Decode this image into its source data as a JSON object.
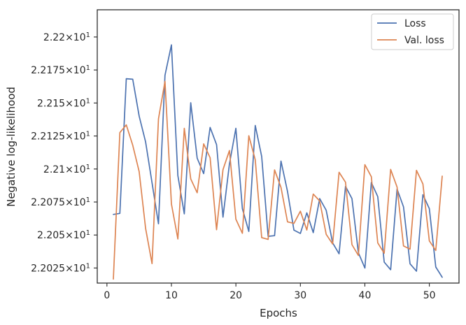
{
  "chart_data": {
    "type": "line",
    "xlabel": "Epochs",
    "ylabel": "Negative log-likelihood",
    "xlim": [
      -1.5,
      54.6
    ],
    "ylim": [
      22.0136,
      22.2206
    ],
    "x_ticks": [
      0,
      10,
      20,
      30,
      40,
      50
    ],
    "x_tick_labels": [
      "0",
      "10",
      "20",
      "30",
      "40",
      "50"
    ],
    "y_ticks": [
      22.025,
      22.05,
      22.075,
      22.1,
      22.125,
      22.15,
      22.175,
      22.2
    ],
    "y_tick_labels": [
      {
        "mantissa": "2.2025",
        "exponent": "1"
      },
      {
        "mantissa": "2.205",
        "exponent": "1"
      },
      {
        "mantissa": "2.2075",
        "exponent": "1"
      },
      {
        "mantissa": "2.21",
        "exponent": "1"
      },
      {
        "mantissa": "2.2125",
        "exponent": "1"
      },
      {
        "mantissa": "2.215",
        "exponent": "1"
      },
      {
        "mantissa": "2.2175",
        "exponent": "1"
      },
      {
        "mantissa": "2.22",
        "exponent": "1"
      }
    ],
    "grid": false,
    "legend_position": "top-right",
    "x": [
      1,
      2,
      3,
      4,
      5,
      6,
      7,
      8,
      9,
      10,
      11,
      12,
      13,
      14,
      15,
      16,
      17,
      18,
      19,
      20,
      21,
      22,
      23,
      24,
      25,
      26,
      27,
      28,
      29,
      30,
      31,
      32,
      33,
      34,
      35,
      36,
      37,
      38,
      39,
      40,
      41,
      42,
      43,
      44,
      45,
      46,
      47,
      48,
      49,
      50,
      51,
      52
    ],
    "series": [
      {
        "name": "Loss",
        "color": "#4c72b0",
        "values": [
          22.0656,
          22.0664,
          22.1684,
          22.168,
          22.14,
          22.1205,
          22.0895,
          22.0585,
          22.171,
          22.194,
          22.095,
          22.066,
          22.1502,
          22.1082,
          22.0965,
          22.1315,
          22.1185,
          22.0635,
          22.1038,
          22.1308,
          22.07,
          22.0527,
          22.133,
          22.1095,
          22.049,
          22.0495,
          22.106,
          22.083,
          22.0537,
          22.0512,
          22.0668,
          22.0518,
          22.0776,
          22.0687,
          22.044,
          22.0358,
          22.0868,
          22.0776,
          22.0365,
          22.025,
          22.0898,
          22.0791,
          22.0295,
          22.0237,
          22.0848,
          22.0713,
          22.0282,
          22.0226,
          22.0805,
          22.07,
          22.0258,
          22.018
        ]
      },
      {
        "name": "Val. loss",
        "color": "#dd8452",
        "values": [
          22.0166,
          22.1276,
          22.1334,
          22.118,
          22.098,
          22.055,
          22.0283,
          22.138,
          22.1664,
          22.0735,
          22.047,
          22.1308,
          22.0925,
          22.082,
          22.119,
          22.1085,
          22.054,
          22.0995,
          22.114,
          22.062,
          22.0513,
          22.1252,
          22.107,
          22.048,
          22.0467,
          22.0993,
          22.086,
          22.06,
          22.0588,
          22.068,
          22.0538,
          22.081,
          22.0758,
          22.0505,
          22.0432,
          22.0975,
          22.09,
          22.0427,
          22.0345,
          22.1033,
          22.0942,
          22.044,
          22.0362,
          22.0997,
          22.0863,
          22.0417,
          22.0393,
          22.099,
          22.0887,
          22.0456,
          22.0383,
          22.0946
        ]
      }
    ]
  }
}
